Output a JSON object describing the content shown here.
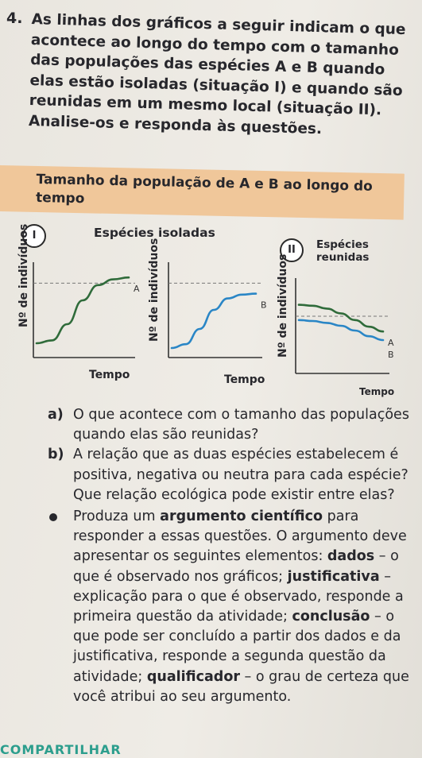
{
  "question": {
    "number": "4.",
    "text": "As linhas dos gráficos a seguir indicam o que acontece ao longo do tempo com o tamanho das populações das espécies A e B quando elas estão isoladas (situação I) e quando são reunidas em um mesmo local (situação II). Analise-os e responda às questões."
  },
  "banner": {
    "title": "Tamanho da população de A e B ao longo do tempo"
  },
  "charts": {
    "isolated_title": "Espécies isoladas",
    "together_title": "Espécies reunidas",
    "panel_i": "I",
    "panel_ii": "II"
  },
  "chart_data": [
    {
      "type": "line",
      "title": "Espécies isoladas",
      "xlabel": "Tempo",
      "ylabel": "Nº de indivíduos",
      "series": [
        {
          "name": "A",
          "x": [
            0,
            1,
            2,
            3,
            4,
            5,
            6
          ],
          "values": [
            0.15,
            0.18,
            0.35,
            0.6,
            0.76,
            0.82,
            0.84
          ]
        }
      ],
      "reference_line": "dashed",
      "color": "#2f6b3a"
    },
    {
      "type": "line",
      "title": "",
      "xlabel": "Tempo",
      "ylabel": "Nº de indivíduos",
      "series": [
        {
          "name": "B",
          "x": [
            0,
            1,
            2,
            3,
            4,
            5,
            6
          ],
          "values": [
            0.1,
            0.14,
            0.3,
            0.5,
            0.62,
            0.66,
            0.67
          ]
        }
      ],
      "reference_line": "dashed",
      "color": "#2a86c6"
    },
    {
      "type": "line",
      "title": "Espécies reunidas",
      "xlabel": "Tempo",
      "ylabel": "Nº de indivíduos",
      "series": [
        {
          "name": "A",
          "x": [
            0,
            1,
            2,
            3,
            4,
            5,
            6
          ],
          "values": [
            0.72,
            0.71,
            0.68,
            0.63,
            0.56,
            0.49,
            0.44
          ]
        },
        {
          "name": "B",
          "x": [
            0,
            1,
            2,
            3,
            4,
            5,
            6
          ],
          "values": [
            0.56,
            0.55,
            0.53,
            0.5,
            0.45,
            0.39,
            0.35
          ]
        }
      ],
      "reference_line": "dashed",
      "colors": [
        "#2f6b3a",
        "#2a86c6"
      ]
    }
  ],
  "items": {
    "a_label": "a)",
    "a_text": "O que acontece com o tamanho das populações quando elas são reunidas?",
    "b_label": "b)",
    "b_text": "A relação que as duas espécies estabelecem é positiva, negativa ou neutra para cada espécie? Que relação ecológica pode existir entre elas?",
    "bullet_1": "Produza um ",
    "bullet_argument": "argumento científico",
    "bullet_2": " para responder a essas questões. O argumento deve apresentar os seguintes elementos: ",
    "bullet_dados": "dados",
    "bullet_3": " – o que é observado nos gráficos; ",
    "bullet_justificativa": "justificativa",
    "bullet_4": " – explicação para o que é observado, responde a primeira questão da atividade; ",
    "bullet_conclusao": "conclusão",
    "bullet_5": " – o que pode ser concluído a partir dos dados e da justificativa, responde a segunda questão da atividade; ",
    "bullet_qualificador": "qualificador",
    "bullet_6": " – o grau de certeza que você atribui ao seu argumento."
  },
  "footer": {
    "share": "COMPARTILHAR"
  }
}
